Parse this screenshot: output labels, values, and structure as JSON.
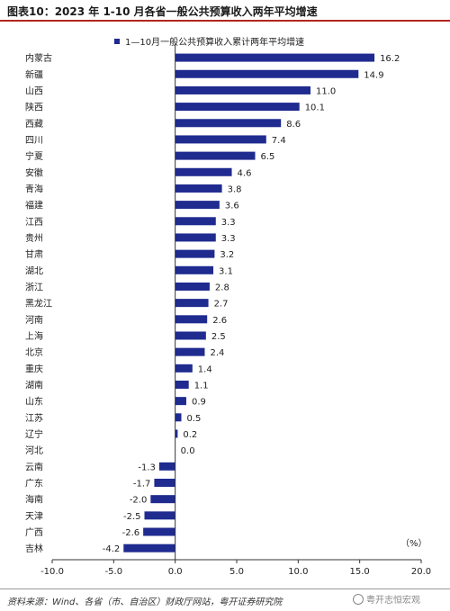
{
  "header": {
    "title": "图表10：2023 年 1-10 月各省一般公共预算收入两年平均增速"
  },
  "legend": {
    "label": "1—10月一般公共预算收入累计两年平均增速"
  },
  "unit_label": "（%）",
  "footer": {
    "source": "资料来源：Wind、各省（市、自治区）财政厅网站，粤开证券研究院",
    "watermark": "粤开志恒宏观"
  },
  "colors": {
    "bar": "#1f2b8f",
    "title_rule": "#b3261e",
    "axis": "#333333"
  },
  "chart_data": {
    "type": "bar",
    "orientation": "horizontal",
    "categories": [
      "内蒙古",
      "新疆",
      "山西",
      "陕西",
      "西藏",
      "四川",
      "宁夏",
      "安徽",
      "青海",
      "福建",
      "江西",
      "贵州",
      "甘肃",
      "湖北",
      "浙江",
      "黑龙江",
      "河南",
      "上海",
      "北京",
      "重庆",
      "湖南",
      "山东",
      "江苏",
      "辽宁",
      "河北",
      "云南",
      "广东",
      "海南",
      "天津",
      "广西",
      "吉林"
    ],
    "values": [
      16.2,
      14.9,
      11.0,
      10.1,
      8.6,
      7.4,
      6.5,
      4.6,
      3.8,
      3.6,
      3.3,
      3.3,
      3.2,
      3.1,
      2.8,
      2.7,
      2.6,
      2.5,
      2.4,
      1.4,
      1.1,
      0.9,
      0.5,
      0.2,
      0.0,
      -1.3,
      -1.7,
      -2.0,
      -2.5,
      -2.6,
      -4.2
    ],
    "xlim": [
      -10,
      20
    ],
    "xticks": [
      -10,
      -5,
      0,
      5,
      10,
      15,
      20
    ],
    "xtick_labels": [
      "-10.0",
      "-5.0",
      "0.0",
      "5.0",
      "10.0",
      "15.0",
      "20.0"
    ]
  }
}
